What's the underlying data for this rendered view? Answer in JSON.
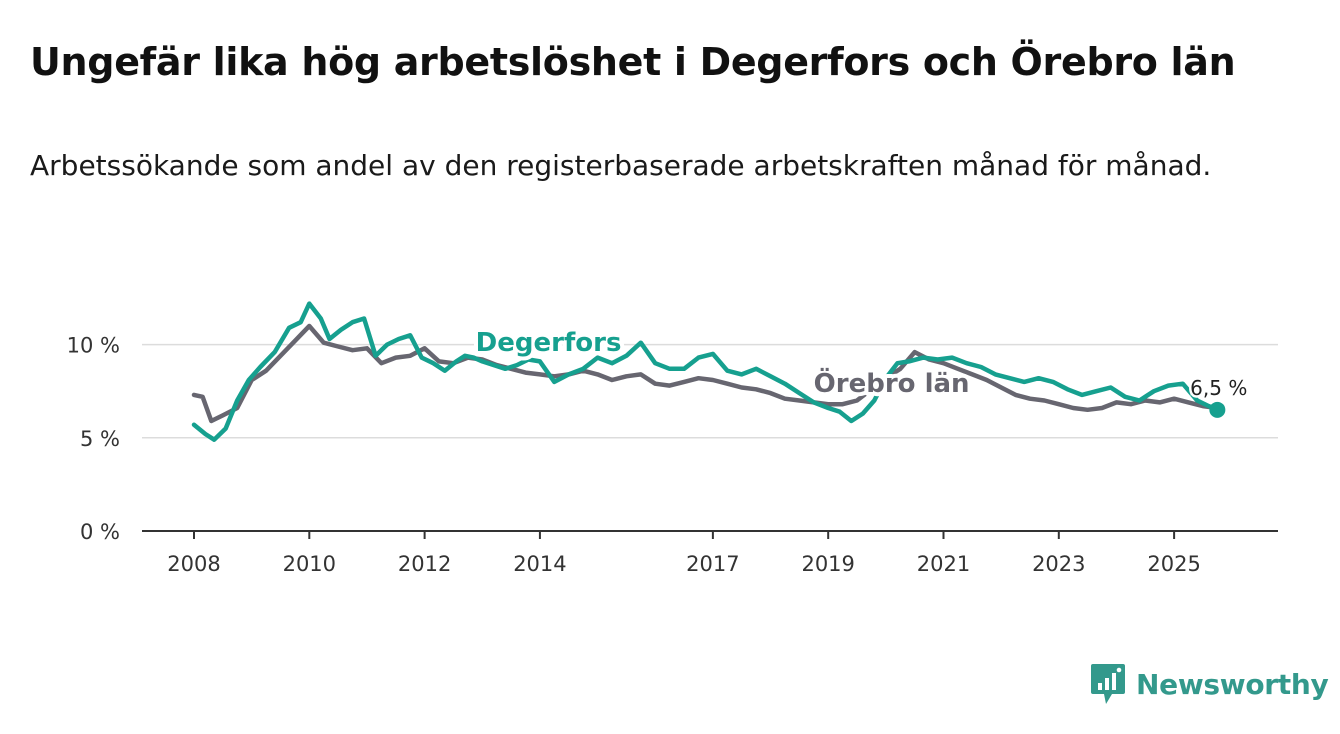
{
  "title": "Ungefär lika hög arbetslöshet i Degerfors och Örebro län",
  "subtitle": "Arbetssökande som andel av den registerbaserade arbetskraften månad för månad.",
  "brand": {
    "name": "Newsworthy",
    "icon": "newsworthy-logo-icon",
    "color": "#33998c"
  },
  "colors": {
    "degerfors": "#16a08f",
    "orebro": "#676670",
    "grid": "#dcdcdc"
  },
  "chart_data": {
    "type": "line",
    "title": "Ungefär lika hög arbetslöshet i Degerfors och Örebro län",
    "xlabel": "",
    "ylabel": "",
    "xlim": [
      2008,
      2025.9
    ],
    "ylim": [
      0,
      12.5
    ],
    "y_ticks": [
      0,
      5,
      10
    ],
    "y_tick_labels": [
      "0 %",
      "5 %",
      "10 %"
    ],
    "x_ticks": [
      2008,
      2010,
      2012,
      2014,
      2017,
      2019,
      2021,
      2023,
      2025
    ],
    "x_tick_labels": [
      "2008",
      "2010",
      "2012",
      "2014",
      "2017",
      "2019",
      "2021",
      "2023",
      "2025"
    ],
    "grid": true,
    "end_value_label": "6,5 %",
    "series": [
      {
        "name": "Degerfors",
        "label": "Degerfors",
        "color": "#16a08f",
        "x": [
          2008.0,
          2008.2,
          2008.35,
          2008.55,
          2008.75,
          2008.95,
          2009.15,
          2009.4,
          2009.65,
          2009.85,
          2010.0,
          2010.2,
          2010.35,
          2010.55,
          2010.75,
          2010.95,
          2011.15,
          2011.35,
          2011.55,
          2011.75,
          2011.95,
          2012.15,
          2012.35,
          2012.55,
          2012.7,
          2012.85,
          2013.0,
          2013.2,
          2013.4,
          2013.6,
          2013.8,
          2014.0,
          2014.25,
          2014.5,
          2014.75,
          2015.0,
          2015.25,
          2015.5,
          2015.75,
          2016.0,
          2016.25,
          2016.5,
          2016.75,
          2017.0,
          2017.25,
          2017.5,
          2017.75,
          2018.0,
          2018.25,
          2018.5,
          2018.75,
          2019.0,
          2019.2,
          2019.4,
          2019.6,
          2019.8,
          2020.0,
          2020.2,
          2020.4,
          2020.65,
          2020.9,
          2021.15,
          2021.4,
          2021.65,
          2021.9,
          2022.15,
          2022.4,
          2022.65,
          2022.9,
          2023.15,
          2023.4,
          2023.65,
          2023.9,
          2024.15,
          2024.4,
          2024.65,
          2024.9,
          2025.15,
          2025.4,
          2025.6,
          2025.75
        ],
        "values": [
          5.7,
          5.2,
          4.9,
          5.5,
          7.0,
          8.1,
          8.8,
          9.6,
          10.9,
          11.2,
          12.2,
          11.4,
          10.3,
          10.8,
          11.2,
          11.4,
          9.4,
          10.0,
          10.3,
          10.5,
          9.3,
          9.0,
          8.6,
          9.1,
          9.4,
          9.3,
          9.1,
          8.9,
          8.7,
          8.9,
          9.2,
          9.1,
          8.0,
          8.4,
          8.7,
          9.3,
          9.0,
          9.4,
          10.1,
          9.0,
          8.7,
          8.7,
          9.3,
          9.5,
          8.6,
          8.4,
          8.7,
          8.3,
          7.9,
          7.4,
          6.9,
          6.6,
          6.4,
          5.9,
          6.3,
          7.0,
          8.2,
          9.0,
          9.1,
          9.3,
          9.2,
          9.3,
          9.0,
          8.8,
          8.4,
          8.2,
          8.0,
          8.2,
          8.0,
          7.6,
          7.3,
          7.5,
          7.7,
          7.2,
          7.0,
          7.5,
          7.8,
          7.9,
          7.0,
          6.7,
          6.5
        ]
      },
      {
        "name": "Örebro län",
        "label": "Örebro län",
        "color": "#676670",
        "x": [
          2008.0,
          2008.15,
          2008.3,
          2008.5,
          2008.75,
          2009.0,
          2009.25,
          2009.5,
          2009.75,
          2010.0,
          2010.25,
          2010.5,
          2010.75,
          2011.0,
          2011.25,
          2011.5,
          2011.75,
          2012.0,
          2012.25,
          2012.5,
          2012.75,
          2013.0,
          2013.25,
          2013.5,
          2013.75,
          2014.0,
          2014.25,
          2014.5,
          2014.75,
          2015.0,
          2015.25,
          2015.5,
          2015.75,
          2016.0,
          2016.25,
          2016.5,
          2016.75,
          2017.0,
          2017.25,
          2017.5,
          2017.75,
          2018.0,
          2018.25,
          2018.5,
          2018.75,
          2019.0,
          2019.25,
          2019.5,
          2019.75,
          2020.0,
          2020.25,
          2020.5,
          2020.75,
          2021.0,
          2021.25,
          2021.5,
          2021.75,
          2022.0,
          2022.25,
          2022.5,
          2022.75,
          2023.0,
          2023.25,
          2023.5,
          2023.75,
          2024.0,
          2024.25,
          2024.5,
          2024.75,
          2025.0,
          2025.25,
          2025.5,
          2025.75
        ],
        "values": [
          7.3,
          7.2,
          5.9,
          6.2,
          6.6,
          8.1,
          8.6,
          9.4,
          10.2,
          11.0,
          10.1,
          9.9,
          9.7,
          9.8,
          9.0,
          9.3,
          9.4,
          9.8,
          9.1,
          9.0,
          9.3,
          9.2,
          8.9,
          8.7,
          8.5,
          8.4,
          8.3,
          8.4,
          8.6,
          8.4,
          8.1,
          8.3,
          8.4,
          7.9,
          7.8,
          8.0,
          8.2,
          8.1,
          7.9,
          7.7,
          7.6,
          7.4,
          7.1,
          7.0,
          6.9,
          6.8,
          6.8,
          7.0,
          7.6,
          8.2,
          8.7,
          9.6,
          9.2,
          9.0,
          8.7,
          8.4,
          8.1,
          7.7,
          7.3,
          7.1,
          7.0,
          6.8,
          6.6,
          6.5,
          6.6,
          6.9,
          6.8,
          7.0,
          6.9,
          7.1,
          6.9,
          6.7,
          6.6
        ]
      }
    ]
  }
}
